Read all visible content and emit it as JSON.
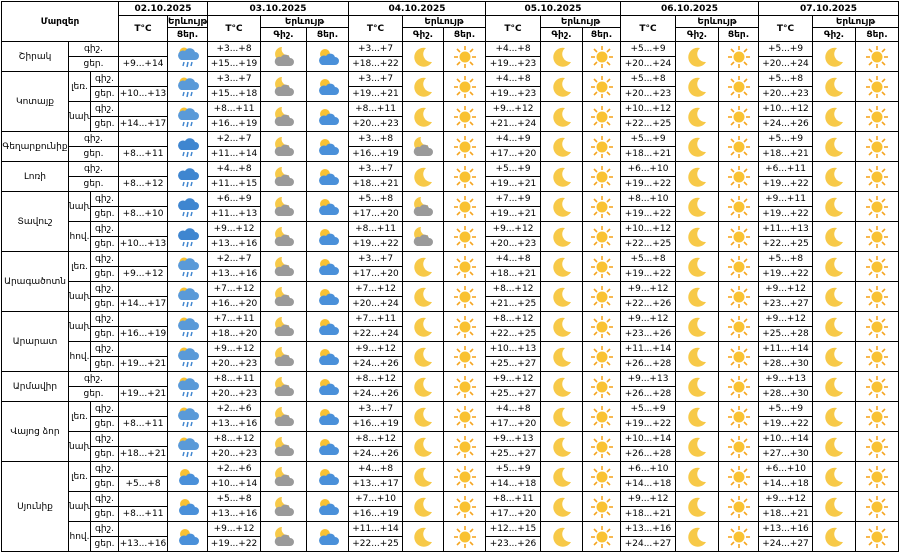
{
  "header": {
    "region_label": "Մարզեր",
    "temp_label": "T°C",
    "phenomenon_label": "Երևույթ",
    "night_label": "Գիշ.",
    "day_label": "Ցեր.",
    "row_night": "գիշ.",
    "row_day": "ցեր."
  },
  "dates": [
    "02.10.2025",
    "03.10.2025",
    "04.10.2025",
    "05.10.2025",
    "06.10.2025",
    "07.10.2025"
  ],
  "regions": [
    {
      "name": "Շիրակ",
      "areas": [
        {
          "first_temp": "+9...+14",
          "first_icon": "rain-sun",
          "temps": [
            [
              "+3...+8",
              "+15...+19"
            ],
            [
              "+3...+7",
              "+18...+22"
            ],
            [
              "+4...+8",
              "+19...+23"
            ],
            [
              "+5...+9",
              "+20...+24"
            ],
            [
              "+5...+9",
              "+20...+24"
            ]
          ],
          "icons": [
            [
              "night-cloud",
              "sun-cloud"
            ],
            [
              "moon",
              "sun"
            ],
            [
              "moon",
              "sun"
            ],
            [
              "moon",
              "sun"
            ],
            [
              "moon",
              "sun"
            ]
          ]
        }
      ]
    },
    {
      "name": "Կոտայք",
      "areas": [
        {
          "zone": "լեռ.",
          "first_temp": "+10...+13",
          "first_icon": "rain-sun",
          "temps": [
            [
              "+3...+7",
              "+15...+18"
            ],
            [
              "+3...+7",
              "+19...+21"
            ],
            [
              "+4...+8",
              "+19...+23"
            ],
            [
              "+5...+8",
              "+20...+23"
            ],
            [
              "+5...+8",
              "+20...+23"
            ]
          ],
          "icons": [
            [
              "night-cloud",
              "sun-cloud"
            ],
            [
              "moon",
              "sun"
            ],
            [
              "moon",
              "sun"
            ],
            [
              "moon",
              "sun"
            ],
            [
              "moon",
              "sun"
            ]
          ]
        },
        {
          "zone": "նախ.",
          "first_temp": "+14...+17",
          "first_icon": "rain-sun",
          "temps": [
            [
              "+8...+11",
              "+16...+19"
            ],
            [
              "+8...+11",
              "+20...+23"
            ],
            [
              "+9...+12",
              "+21...+24"
            ],
            [
              "+10...+12",
              "+22...+25"
            ],
            [
              "+10...+12",
              "+24...+26"
            ]
          ],
          "icons": [
            [
              "night-cloud",
              "sun-cloud"
            ],
            [
              "moon",
              "sun"
            ],
            [
              "moon",
              "sun"
            ],
            [
              "moon",
              "sun"
            ],
            [
              "moon",
              "sun"
            ]
          ]
        }
      ]
    },
    {
      "name": "Գեղարքունիք",
      "areas": [
        {
          "first_temp": "+8...+11",
          "first_icon": "rain",
          "temps": [
            [
              "+2...+7",
              "+11...+14"
            ],
            [
              "+3...+8",
              "+16...+19"
            ],
            [
              "+4...+9",
              "+17...+20"
            ],
            [
              "+5...+9",
              "+18...+21"
            ],
            [
              "+5...+9",
              "+18...+21"
            ]
          ],
          "icons": [
            [
              "night-cloud",
              "sun-cloud"
            ],
            [
              "night-cloud",
              "sun"
            ],
            [
              "moon",
              "sun"
            ],
            [
              "moon",
              "sun"
            ],
            [
              "moon",
              "sun"
            ]
          ]
        }
      ]
    },
    {
      "name": "Լոռի",
      "areas": [
        {
          "first_temp": "+8...+12",
          "first_icon": "rain",
          "temps": [
            [
              "+4...+8",
              "+11...+15"
            ],
            [
              "+3...+7",
              "+18...+21"
            ],
            [
              "+5...+9",
              "+19...+21"
            ],
            [
              "+6...+10",
              "+19...+22"
            ],
            [
              "+6...+11",
              "+19...+22"
            ]
          ],
          "icons": [
            [
              "night-cloud",
              "sun-cloud"
            ],
            [
              "moon",
              "sun"
            ],
            [
              "moon",
              "sun"
            ],
            [
              "moon",
              "sun"
            ],
            [
              "moon",
              "sun"
            ]
          ]
        }
      ]
    },
    {
      "name": "Տավուշ",
      "areas": [
        {
          "zone": "նախ.",
          "first_temp": "+8...+10",
          "first_icon": "rain",
          "temps": [
            [
              "+6...+9",
              "+11...+13"
            ],
            [
              "+5...+8",
              "+17...+20"
            ],
            [
              "+7...+9",
              "+19...+21"
            ],
            [
              "+8...+10",
              "+19...+22"
            ],
            [
              "+9...+11",
              "+19...+22"
            ]
          ],
          "icons": [
            [
              "night-cloud",
              "sun-cloud"
            ],
            [
              "night-cloud",
              "sun"
            ],
            [
              "moon",
              "sun"
            ],
            [
              "moon",
              "sun"
            ],
            [
              "moon",
              "sun"
            ]
          ]
        },
        {
          "zone": "հով.",
          "first_temp": "+10...+13",
          "first_icon": "rain",
          "temps": [
            [
              "+9...+12",
              "+13...+16"
            ],
            [
              "+8...+11",
              "+19...+22"
            ],
            [
              "+9...+12",
              "+20...+23"
            ],
            [
              "+10...+12",
              "+22...+25"
            ],
            [
              "+11...+13",
              "+22...+25"
            ]
          ],
          "icons": [
            [
              "night-cloud",
              "sun-cloud"
            ],
            [
              "night-cloud",
              "sun"
            ],
            [
              "moon",
              "sun"
            ],
            [
              "moon",
              "sun"
            ],
            [
              "moon",
              "sun"
            ]
          ]
        }
      ]
    },
    {
      "name": "Արագածոտն",
      "areas": [
        {
          "zone": "լեռ.",
          "first_temp": "+9...+12",
          "first_icon": "rain-sun",
          "temps": [
            [
              "+2...+7",
              "+13...+16"
            ],
            [
              "+3...+7",
              "+17...+20"
            ],
            [
              "+4...+8",
              "+18...+21"
            ],
            [
              "+5...+8",
              "+19...+22"
            ],
            [
              "+5...+8",
              "+19...+22"
            ]
          ],
          "icons": [
            [
              "night-cloud",
              "sun-cloud"
            ],
            [
              "moon",
              "sun"
            ],
            [
              "moon",
              "sun"
            ],
            [
              "moon",
              "sun"
            ],
            [
              "moon",
              "sun"
            ]
          ]
        },
        {
          "zone": "նախ.",
          "first_temp": "+14...+17",
          "first_icon": "rain-sun",
          "temps": [
            [
              "+7...+12",
              "+16...+20"
            ],
            [
              "+7...+12",
              "+20...+24"
            ],
            [
              "+8...+12",
              "+21...+25"
            ],
            [
              "+9...+12",
              "+22...+26"
            ],
            [
              "+9...+12",
              "+23...+27"
            ]
          ],
          "icons": [
            [
              "night-cloud",
              "sun-cloud"
            ],
            [
              "moon",
              "sun"
            ],
            [
              "moon",
              "sun"
            ],
            [
              "moon",
              "sun"
            ],
            [
              "moon",
              "sun"
            ]
          ]
        }
      ]
    },
    {
      "name": "Արարատ",
      "areas": [
        {
          "zone": "նախ.",
          "first_temp": "+16...+19",
          "first_icon": "rain-sun",
          "temps": [
            [
              "+7...+11",
              "+18...+20"
            ],
            [
              "+7...+11",
              "+22...+24"
            ],
            [
              "+8...+12",
              "+22...+25"
            ],
            [
              "+9...+12",
              "+23...+26"
            ],
            [
              "+9...+12",
              "+25...+28"
            ]
          ],
          "icons": [
            [
              "night-cloud",
              "sun-cloud"
            ],
            [
              "moon",
              "sun"
            ],
            [
              "moon",
              "sun"
            ],
            [
              "moon",
              "sun"
            ],
            [
              "moon",
              "sun"
            ]
          ]
        },
        {
          "zone": "հով.",
          "first_temp": "+19...+21",
          "first_icon": "rain-sun",
          "temps": [
            [
              "+9...+12",
              "+20...+23"
            ],
            [
              "+9...+12",
              "+24...+26"
            ],
            [
              "+10...+13",
              "+25...+27"
            ],
            [
              "+11...+14",
              "+26...+28"
            ],
            [
              "+11...+14",
              "+28...+30"
            ]
          ],
          "icons": [
            [
              "night-cloud",
              "sun-cloud"
            ],
            [
              "moon",
              "sun"
            ],
            [
              "moon",
              "sun"
            ],
            [
              "moon",
              "sun"
            ],
            [
              "moon",
              "sun"
            ]
          ]
        }
      ]
    },
    {
      "name": "Արմավիր",
      "areas": [
        {
          "first_temp": "+19...+21",
          "first_icon": "rain-sun",
          "temps": [
            [
              "+8...+11",
              "+20...+23"
            ],
            [
              "+8...+12",
              "+24...+26"
            ],
            [
              "+9...+12",
              "+25...+27"
            ],
            [
              "+9...+13",
              "+26...+28"
            ],
            [
              "+9...+13",
              "+28...+30"
            ]
          ],
          "icons": [
            [
              "night-cloud",
              "sun-cloud"
            ],
            [
              "moon",
              "sun"
            ],
            [
              "moon",
              "sun"
            ],
            [
              "moon",
              "sun"
            ],
            [
              "moon",
              "sun"
            ]
          ]
        }
      ]
    },
    {
      "name": "Վայոց ձոր",
      "areas": [
        {
          "zone": "լեռ.",
          "first_temp": "+8...+11",
          "first_icon": "rain-sun",
          "temps": [
            [
              "+2...+6",
              "+13...+16"
            ],
            [
              "+3...+7",
              "+16...+19"
            ],
            [
              "+4...+8",
              "+17...+20"
            ],
            [
              "+5...+9",
              "+19...+22"
            ],
            [
              "+5...+9",
              "+19...+22"
            ]
          ],
          "icons": [
            [
              "night-cloud",
              "sun-cloud"
            ],
            [
              "moon",
              "sun"
            ],
            [
              "moon",
              "sun"
            ],
            [
              "moon",
              "sun"
            ],
            [
              "moon",
              "sun"
            ]
          ]
        },
        {
          "zone": "նախ.",
          "first_temp": "+18...+21",
          "first_icon": "rain-sun",
          "temps": [
            [
              "+8...+12",
              "+20...+23"
            ],
            [
              "+8...+12",
              "+24...+26"
            ],
            [
              "+9...+13",
              "+25...+27"
            ],
            [
              "+10...+14",
              "+26...+28"
            ],
            [
              "+10...+14",
              "+27...+30"
            ]
          ],
          "icons": [
            [
              "night-cloud",
              "sun-cloud"
            ],
            [
              "moon",
              "sun"
            ],
            [
              "moon",
              "sun"
            ],
            [
              "moon",
              "sun"
            ],
            [
              "moon",
              "sun"
            ]
          ]
        }
      ]
    },
    {
      "name": "Սյունիք",
      "areas": [
        {
          "zone": "լեռ.",
          "first_temp": "+5...+8",
          "first_icon": "sun-cloud",
          "temps": [
            [
              "+2...+6",
              "+10...+14"
            ],
            [
              "+4...+8",
              "+13...+17"
            ],
            [
              "+5...+9",
              "+14...+18"
            ],
            [
              "+6...+10",
              "+14...+18"
            ],
            [
              "+6...+10",
              "+14...+18"
            ]
          ],
          "icons": [
            [
              "night-cloud",
              "sun-cloud"
            ],
            [
              "moon",
              "sun"
            ],
            [
              "moon",
              "sun"
            ],
            [
              "moon",
              "sun"
            ],
            [
              "moon",
              "sun"
            ]
          ]
        },
        {
          "zone": "նախ.",
          "first_temp": "+8...+11",
          "first_icon": "sun-cloud",
          "temps": [
            [
              "+5...+8",
              "+13...+16"
            ],
            [
              "+7...+10",
              "+16...+19"
            ],
            [
              "+8...+11",
              "+17...+20"
            ],
            [
              "+9...+12",
              "+18...+21"
            ],
            [
              "+9...+12",
              "+18...+21"
            ]
          ],
          "icons": [
            [
              "night-cloud",
              "sun-cloud"
            ],
            [
              "moon",
              "sun"
            ],
            [
              "moon",
              "sun"
            ],
            [
              "moon",
              "sun"
            ],
            [
              "moon",
              "sun"
            ]
          ]
        },
        {
          "zone": "հով.",
          "first_temp": "+13...+16",
          "first_icon": "sun-cloud",
          "temps": [
            [
              "+9...+12",
              "+19...+22"
            ],
            [
              "+11...+14",
              "+22...+25"
            ],
            [
              "+12...+15",
              "+23...+26"
            ],
            [
              "+13...+16",
              "+24...+27"
            ],
            [
              "+13...+16",
              "+24...+27"
            ]
          ],
          "icons": [
            [
              "night-cloud",
              "sun-cloud"
            ],
            [
              "moon",
              "sun"
            ],
            [
              "moon",
              "sun"
            ],
            [
              "moon",
              "sun"
            ],
            [
              "moon",
              "sun"
            ]
          ]
        }
      ]
    }
  ]
}
